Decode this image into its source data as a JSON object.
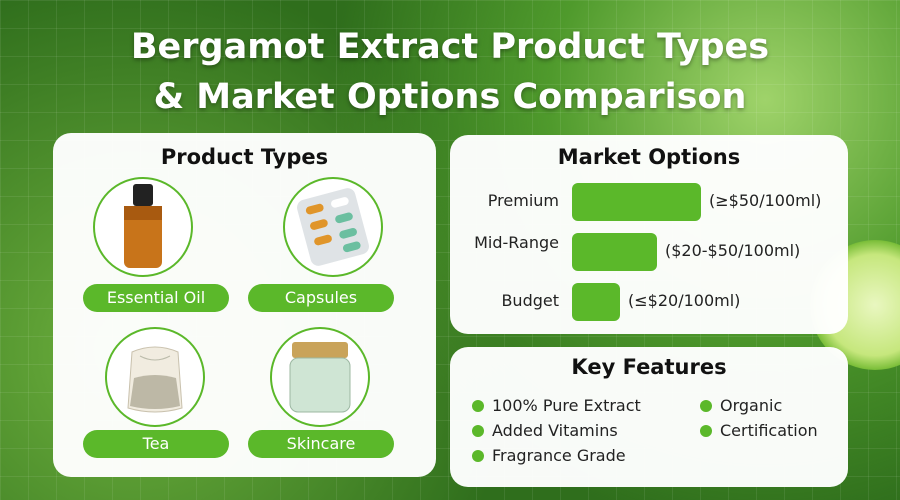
{
  "title": {
    "line1": "Bergamot Extract Product Types",
    "line2": "& Market Options Comparison"
  },
  "colors": {
    "accent": "#5bb82a"
  },
  "product_types": {
    "heading": "Product Types",
    "items": [
      {
        "label": "Essential Oil",
        "icon": "essential-oil-bottle-icon"
      },
      {
        "label": "Capsules",
        "icon": "capsule-blister-icon"
      },
      {
        "label": "Tea",
        "icon": "tea-bag-icon"
      },
      {
        "label": "Skincare",
        "icon": "cream-jar-icon"
      }
    ]
  },
  "market_options": {
    "heading": "Market Options",
    "tiers": [
      {
        "label": "Premium",
        "range": "(≥$50/100ml)",
        "relative_level": 1.0
      },
      {
        "label": "Mid-Range",
        "range": "($20-$50/100ml)",
        "relative_level": 0.66
      },
      {
        "label": "Budget",
        "range": "(≤$20/100ml)",
        "relative_level": 0.37
      }
    ]
  },
  "key_features": {
    "heading": "Key Features",
    "items": [
      "100% Pure Extract",
      "Added Vitamins",
      "Fragrance Grade",
      "Organic",
      "Certification"
    ]
  }
}
